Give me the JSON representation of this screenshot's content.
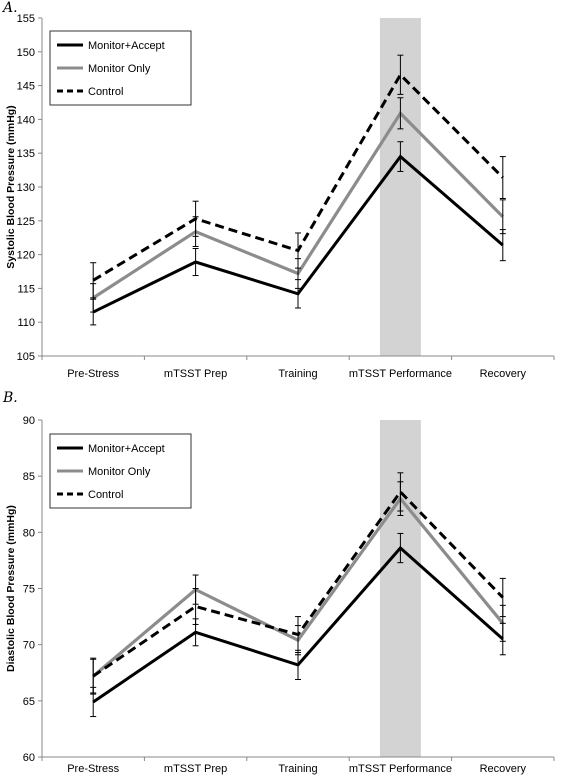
{
  "chart_data": [
    {
      "type": "line",
      "panel_label": "A.",
      "categories": [
        "Pre-Stress",
        "mTSST Prep",
        "Training",
        "mTSST Performance",
        "Recovery"
      ],
      "ylabel": "Systolic Blood Pressure (mmHg)",
      "ylim": [
        105,
        155
      ],
      "yticks": [
        105,
        110,
        115,
        120,
        125,
        130,
        135,
        140,
        145,
        150,
        155
      ],
      "highlight_category": "mTSST Performance",
      "legend_position": "top-left",
      "grid": false,
      "series": [
        {
          "name": "Monitor+Accept",
          "style": "solid",
          "color": "#000000",
          "values": [
            111.5,
            118.9,
            114.2,
            134.5,
            121.4
          ],
          "errors": [
            1.9,
            2.0,
            2.1,
            2.2,
            2.3
          ]
        },
        {
          "name": "Monitor Only",
          "style": "solid",
          "color": "#8c8c8c",
          "values": [
            113.6,
            123.4,
            117.2,
            140.9,
            125.6
          ],
          "errors": [
            2.1,
            2.2,
            2.2,
            2.3,
            2.5
          ]
        },
        {
          "name": "Control",
          "style": "dashed",
          "color": "#000000",
          "values": [
            116.2,
            125.3,
            120.6,
            146.6,
            131.4
          ],
          "errors": [
            2.6,
            2.6,
            2.6,
            2.9,
            3.1
          ]
        }
      ]
    },
    {
      "type": "line",
      "panel_label": "B.",
      "categories": [
        "Pre-Stress",
        "mTSST Prep",
        "Training",
        "mTSST Performance",
        "Recovery"
      ],
      "ylabel": "Diastolic Blood Pressure (mmHg)",
      "ylim": [
        60,
        90
      ],
      "yticks": [
        60,
        65,
        70,
        75,
        80,
        85,
        90
      ],
      "highlight_category": "mTSST Performance",
      "legend_position": "top-left",
      "grid": false,
      "series": [
        {
          "name": "Monitor+Accept",
          "style": "solid",
          "color": "#000000",
          "values": [
            64.9,
            71.1,
            68.2,
            78.6,
            70.5
          ],
          "errors": [
            1.3,
            1.2,
            1.3,
            1.3,
            1.4
          ]
        },
        {
          "name": "Monitor Only",
          "style": "solid",
          "color": "#8c8c8c",
          "values": [
            67.2,
            74.9,
            70.4,
            83.0,
            71.9
          ],
          "errors": [
            1.5,
            1.3,
            1.3,
            1.5,
            1.6
          ]
        },
        {
          "name": "Control",
          "style": "dashed",
          "color": "#000000",
          "values": [
            67.2,
            73.4,
            70.9,
            83.6,
            74.2
          ],
          "errors": [
            1.6,
            1.6,
            1.6,
            1.7,
            1.7
          ]
        }
      ]
    }
  ]
}
